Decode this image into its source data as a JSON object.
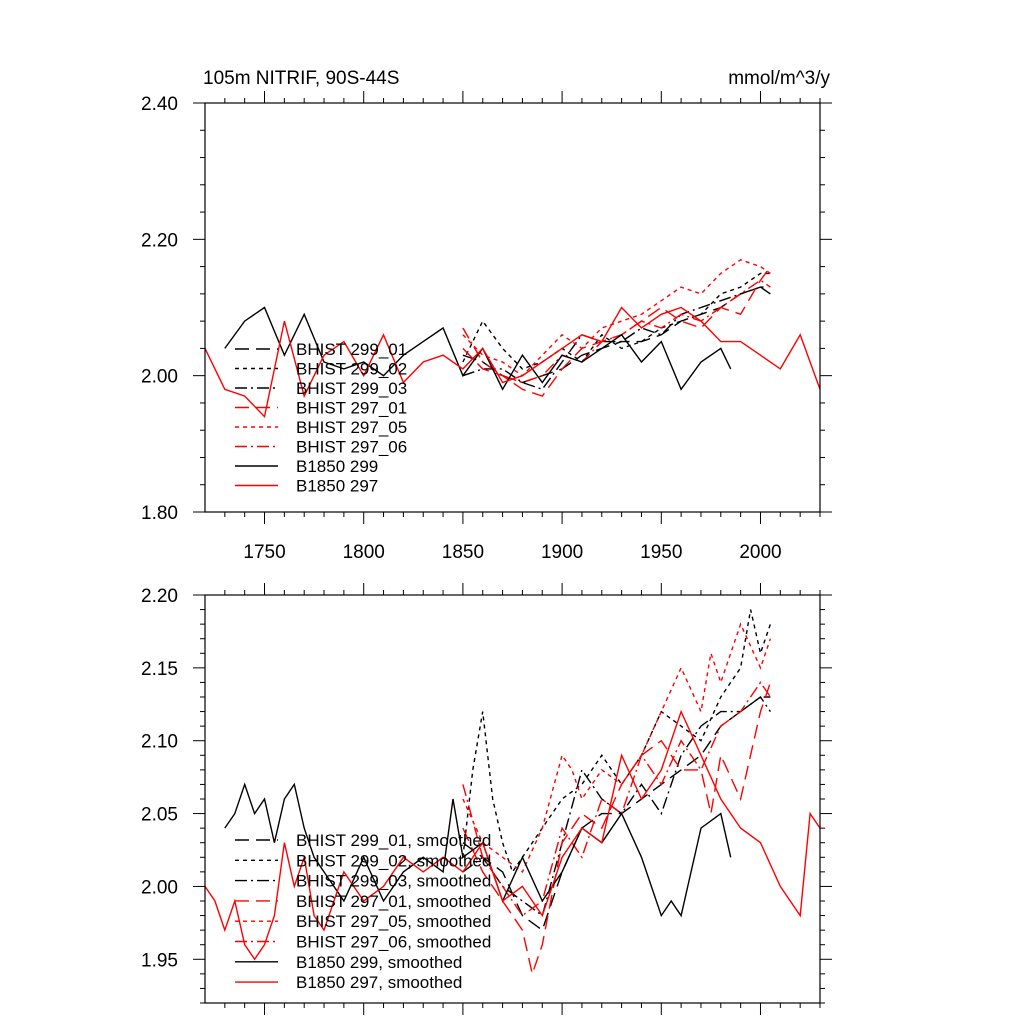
{
  "chart_data": [
    {
      "type": "line",
      "title_left": "105m NITRIF, 90S-44S",
      "title_right": "mmol/m^3/y",
      "xlabel": "",
      "ylabel": "",
      "xlim": [
        1720,
        2030
      ],
      "ylim": [
        1.8,
        2.4
      ],
      "x_ticks": [
        1750,
        1800,
        1850,
        1900,
        1950,
        2000
      ],
      "x_tick_labels": [
        "1750",
        "1800",
        "1850",
        "1900",
        "1950",
        "2000"
      ],
      "y_ticks": [
        1.8,
        2.0,
        2.2,
        2.4
      ],
      "y_tick_labels": [
        "1.80",
        "2.00",
        "2.20",
        "2.40"
      ],
      "legend_position": "lower-left",
      "grid": false,
      "series": [
        {
          "name": "BHIST 299_01",
          "color": "#000000",
          "dash": "long-dash",
          "x": [
            1850,
            1860,
            1870,
            1880,
            1890,
            1900,
            1910,
            1920,
            1930,
            1940,
            1950,
            1960,
            1970,
            1980,
            1990,
            2000,
            2005
          ],
          "y": [
            2.03,
            2.02,
            2.0,
            1.99,
            2.0,
            2.01,
            2.03,
            2.04,
            2.05,
            2.05,
            2.06,
            2.08,
            2.09,
            2.1,
            2.12,
            2.13,
            2.13
          ]
        },
        {
          "name": "BHIST 299_02",
          "color": "#000000",
          "dash": "short-dash",
          "x": [
            1850,
            1860,
            1870,
            1880,
            1890,
            1900,
            1910,
            1920,
            1930,
            1940,
            1950,
            1960,
            1970,
            1980,
            1990,
            2000,
            2005
          ],
          "y": [
            2.02,
            2.08,
            2.04,
            2.01,
            2.02,
            2.04,
            2.02,
            2.06,
            2.04,
            2.05,
            2.07,
            2.08,
            2.09,
            2.12,
            2.13,
            2.15,
            2.15
          ]
        },
        {
          "name": "BHIST 299_03",
          "color": "#000000",
          "dash": "dash-dot",
          "x": [
            1850,
            1860,
            1870,
            1880,
            1890,
            1900,
            1910,
            1920,
            1930,
            1940,
            1950,
            1960,
            1970,
            1980,
            1990,
            2000,
            2005
          ],
          "y": [
            2.0,
            2.01,
            2.01,
            1.99,
            1.98,
            2.02,
            2.06,
            2.05,
            2.05,
            2.07,
            2.06,
            2.09,
            2.1,
            2.11,
            2.12,
            2.13,
            2.12
          ]
        },
        {
          "name": "BHIST 297_01",
          "color": "#ff0000",
          "dash": "long-dash",
          "x": [
            1850,
            1860,
            1870,
            1880,
            1890,
            1900,
            1910,
            1920,
            1930,
            1940,
            1950,
            1960,
            1970,
            1980,
            1990,
            2000,
            2005
          ],
          "y": [
            2.04,
            2.01,
            2.0,
            1.98,
            1.97,
            2.01,
            2.04,
            2.05,
            2.06,
            2.08,
            2.1,
            2.08,
            2.07,
            2.1,
            2.09,
            2.14,
            2.16
          ]
        },
        {
          "name": "BHIST 297_05",
          "color": "#ff0000",
          "dash": "short-dash",
          "x": [
            1850,
            1860,
            1870,
            1880,
            1890,
            1900,
            1910,
            1920,
            1930,
            1940,
            1950,
            1960,
            1970,
            1980,
            1990,
            2000,
            2005
          ],
          "y": [
            2.06,
            2.03,
            2.02,
            2.0,
            2.03,
            2.06,
            2.04,
            2.07,
            2.08,
            2.09,
            2.11,
            2.13,
            2.12,
            2.15,
            2.17,
            2.16,
            2.15
          ]
        },
        {
          "name": "BHIST 297_06",
          "color": "#ff0000",
          "dash": "dash-dot",
          "x": [
            1850,
            1860,
            1870,
            1880,
            1890,
            1900,
            1910,
            1920,
            1930,
            1940,
            1950,
            1960,
            1970,
            1980,
            1990,
            2000,
            2005
          ],
          "y": [
            2.07,
            2.02,
            2.0,
            1.99,
            2.0,
            2.03,
            2.02,
            2.05,
            2.06,
            2.08,
            2.07,
            2.09,
            2.08,
            2.1,
            2.12,
            2.14,
            2.13
          ]
        },
        {
          "name": "B1850 299",
          "color": "#000000",
          "dash": "solid",
          "x": [
            1730,
            1740,
            1750,
            1760,
            1770,
            1780,
            1790,
            1800,
            1810,
            1820,
            1830,
            1840,
            1850,
            1860,
            1870,
            1880,
            1890,
            1900,
            1910,
            1920,
            1930,
            1940,
            1950,
            1960,
            1970,
            1980,
            1985
          ],
          "y": [
            2.04,
            2.08,
            2.1,
            2.03,
            2.09,
            2.02,
            2.01,
            2.02,
            2.0,
            2.03,
            2.05,
            2.07,
            2.0,
            2.04,
            1.98,
            2.03,
            1.99,
            2.03,
            2.02,
            2.04,
            2.06,
            2.02,
            2.05,
            1.98,
            2.02,
            2.04,
            2.01
          ]
        },
        {
          "name": "B1850 297",
          "color": "#ff0000",
          "dash": "solid",
          "x": [
            1720,
            1730,
            1740,
            1750,
            1760,
            1770,
            1780,
            1790,
            1800,
            1810,
            1820,
            1830,
            1840,
            1850,
            1860,
            1870,
            1880,
            1890,
            1900,
            1910,
            1920,
            1930,
            1940,
            1950,
            1960,
            1970,
            1980,
            1990,
            2000,
            2010,
            2020,
            2030
          ],
          "y": [
            2.04,
            1.98,
            1.97,
            1.94,
            2.08,
            1.97,
            2.03,
            2.05,
            2.0,
            2.06,
            1.99,
            2.02,
            2.03,
            2.01,
            2.04,
            1.99,
            2.0,
            2.02,
            2.04,
            2.06,
            2.05,
            2.1,
            2.07,
            2.09,
            2.1,
            2.08,
            2.05,
            2.05,
            2.03,
            2.01,
            2.06,
            1.98
          ]
        }
      ]
    },
    {
      "type": "line",
      "xlim": [
        1720,
        2030
      ],
      "ylim": [
        1.92,
        2.2
      ],
      "x_ticks": [
        1750,
        1800,
        1850,
        1900,
        1950,
        2000
      ],
      "y_ticks": [
        1.95,
        2.0,
        2.05,
        2.1,
        2.15,
        2.2
      ],
      "y_tick_labels": [
        "1.95",
        "2.00",
        "2.05",
        "2.10",
        "2.15",
        "2.20"
      ],
      "legend_position": "lower-left",
      "grid": false,
      "series": [
        {
          "name": "BHIST 299_01, smoothed",
          "color": "#000000",
          "dash": "long-dash",
          "x": [
            1850,
            1860,
            1870,
            1880,
            1890,
            1900,
            1910,
            1920,
            1930,
            1940,
            1950,
            1960,
            1970,
            1980,
            1990,
            2000,
            2005
          ],
          "y": [
            2.03,
            2.02,
            2.01,
            1.98,
            1.97,
            2.01,
            2.04,
            2.05,
            2.05,
            2.06,
            2.07,
            2.08,
            2.09,
            2.11,
            2.12,
            2.13,
            2.13
          ]
        },
        {
          "name": "BHIST 299_02, smoothed",
          "color": "#000000",
          "dash": "short-dash",
          "x": [
            1850,
            1855,
            1860,
            1865,
            1870,
            1875,
            1880,
            1890,
            1900,
            1910,
            1920,
            1930,
            1940,
            1950,
            1960,
            1970,
            1980,
            1990,
            1995,
            2000,
            2005
          ],
          "y": [
            2.02,
            2.08,
            2.12,
            2.06,
            2.03,
            2.01,
            2.02,
            2.04,
            2.06,
            2.07,
            2.09,
            2.07,
            2.09,
            2.12,
            2.11,
            2.1,
            2.13,
            2.15,
            2.19,
            2.16,
            2.18
          ]
        },
        {
          "name": "BHIST 299_03, smoothed",
          "color": "#000000",
          "dash": "dash-dot",
          "x": [
            1850,
            1860,
            1870,
            1880,
            1890,
            1900,
            1910,
            1920,
            1930,
            1940,
            1950,
            1960,
            1970,
            1980,
            1990,
            2000,
            2005
          ],
          "y": [
            2.01,
            2.02,
            2.0,
            1.99,
            1.98,
            2.03,
            2.08,
            2.06,
            2.05,
            2.07,
            2.05,
            2.09,
            2.11,
            2.12,
            2.12,
            2.13,
            2.12
          ]
        },
        {
          "name": "BHIST 297_01, smoothed",
          "color": "#ff0000",
          "dash": "long-dash",
          "x": [
            1850,
            1860,
            1870,
            1880,
            1885,
            1890,
            1900,
            1910,
            1920,
            1930,
            1940,
            1950,
            1960,
            1970,
            1975,
            1980,
            1990,
            2000,
            2005
          ],
          "y": [
            2.04,
            2.01,
            1.99,
            1.97,
            1.94,
            1.96,
            2.03,
            2.05,
            2.04,
            2.07,
            2.09,
            2.1,
            2.08,
            2.08,
            2.05,
            2.09,
            2.06,
            2.12,
            2.14
          ]
        },
        {
          "name": "BHIST 297_05, smoothed",
          "color": "#ff0000",
          "dash": "short-dash",
          "x": [
            1850,
            1860,
            1870,
            1880,
            1890,
            1900,
            1905,
            1910,
            1920,
            1930,
            1940,
            1950,
            1960,
            1970,
            1975,
            1980,
            1990,
            2000,
            2005
          ],
          "y": [
            2.06,
            2.03,
            2.02,
            2.01,
            2.04,
            2.09,
            2.08,
            2.06,
            2.08,
            2.07,
            2.09,
            2.12,
            2.15,
            2.12,
            2.16,
            2.14,
            2.18,
            2.15,
            2.17
          ]
        },
        {
          "name": "BHIST 297_06, smoothed",
          "color": "#ff0000",
          "dash": "dash-dot",
          "x": [
            1850,
            1860,
            1870,
            1880,
            1890,
            1900,
            1910,
            1920,
            1930,
            1940,
            1950,
            1960,
            1970,
            1980,
            1990,
            2000,
            2005
          ],
          "y": [
            2.07,
            2.02,
            2.0,
            1.98,
            1.99,
            2.04,
            2.02,
            2.06,
            2.05,
            2.09,
            2.07,
            2.1,
            2.08,
            2.11,
            2.12,
            2.14,
            2.13
          ]
        },
        {
          "name": "B1850 299, smoothed",
          "color": "#000000",
          "dash": "solid",
          "x": [
            1730,
            1735,
            1740,
            1745,
            1750,
            1755,
            1760,
            1765,
            1770,
            1775,
            1780,
            1790,
            1800,
            1810,
            1820,
            1830,
            1840,
            1845,
            1850,
            1860,
            1870,
            1880,
            1890,
            1900,
            1910,
            1920,
            1930,
            1940,
            1950,
            1955,
            1960,
            1970,
            1980,
            1985
          ],
          "y": [
            2.04,
            2.05,
            2.07,
            2.05,
            2.06,
            2.03,
            2.06,
            2.07,
            2.04,
            2.02,
            2.01,
            1.99,
            2.02,
            1.99,
            2.01,
            2.02,
            2.01,
            2.06,
            2.02,
            2.03,
            1.99,
            2.02,
            1.99,
            2.01,
            2.04,
            2.03,
            2.05,
            2.02,
            1.98,
            1.99,
            1.98,
            2.04,
            2.05,
            2.02
          ]
        },
        {
          "name": "B1850 297, smoothed",
          "color": "#ff0000",
          "dash": "solid",
          "x": [
            1720,
            1725,
            1730,
            1735,
            1740,
            1745,
            1750,
            1755,
            1760,
            1765,
            1770,
            1775,
            1780,
            1790,
            1800,
            1810,
            1820,
            1830,
            1840,
            1850,
            1860,
            1870,
            1880,
            1890,
            1900,
            1910,
            1920,
            1930,
            1940,
            1950,
            1960,
            1970,
            1980,
            1990,
            2000,
            2010,
            2020,
            2025,
            2030
          ],
          "y": [
            2.0,
            1.99,
            1.97,
            1.99,
            1.96,
            1.95,
            1.96,
            1.98,
            2.03,
            2.0,
            2.02,
            1.98,
            1.97,
            2.01,
            1.99,
            2.0,
            2.02,
            2.01,
            2.02,
            2.01,
            2.03,
            1.99,
            2.0,
            1.98,
            2.02,
            2.04,
            2.03,
            2.09,
            2.06,
            2.08,
            2.12,
            2.09,
            2.06,
            2.04,
            2.03,
            2.0,
            1.98,
            2.05,
            2.04
          ]
        }
      ]
    }
  ]
}
